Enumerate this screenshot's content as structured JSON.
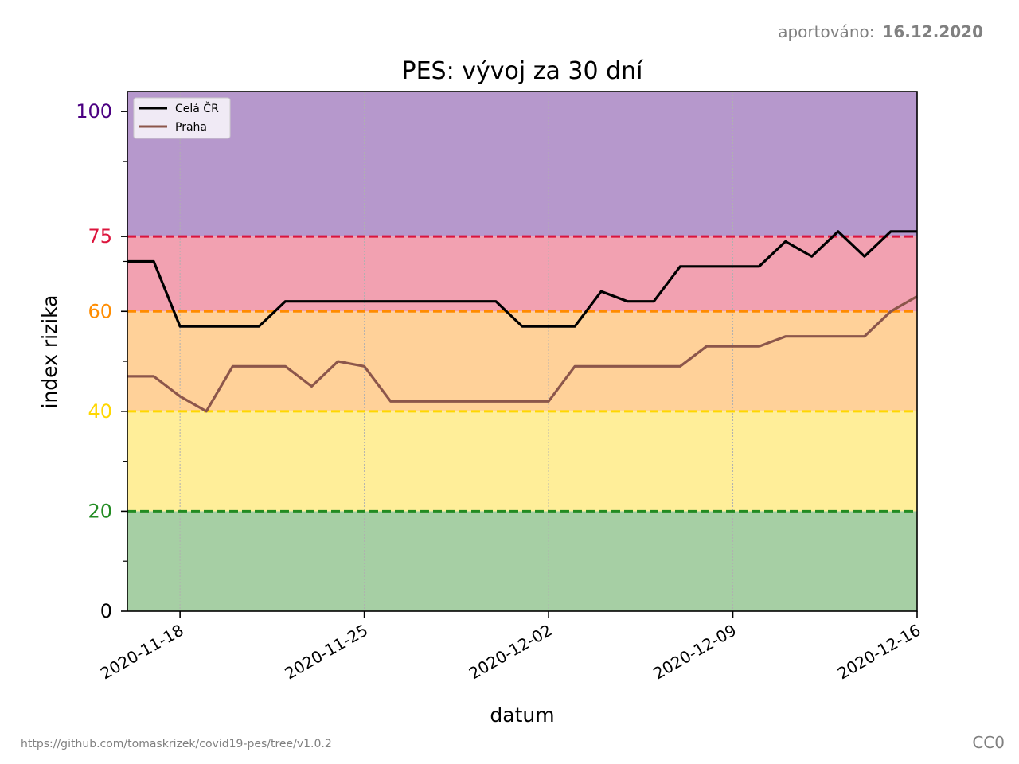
{
  "header": {
    "report_label": "aportováno:",
    "report_date": "16.12.2020"
  },
  "footer": {
    "source_url": "https://github.com/tomaskrizek/covid19-pes/tree/v1.0.2",
    "license": "CC0"
  },
  "chart_data": {
    "type": "line",
    "title": "PES: vývoj za 30 dní",
    "xlabel": "datum",
    "ylabel": "index rizika",
    "ylim": [
      0,
      104
    ],
    "xlim": [
      "2020-11-16",
      "2020-12-16"
    ],
    "x_ticks": [
      "2020-11-18",
      "2020-11-25",
      "2020-12-02",
      "2020-12-09",
      "2020-12-16"
    ],
    "y_ticks": [
      {
        "value": 0,
        "label": "0",
        "color": "#000000"
      },
      {
        "value": 20,
        "label": "20",
        "color": "#228b22"
      },
      {
        "value": 40,
        "label": "40",
        "color": "#ffd700"
      },
      {
        "value": 60,
        "label": "60",
        "color": "#ff8c00"
      },
      {
        "value": 75,
        "label": "75",
        "color": "#dc143c"
      },
      {
        "value": 100,
        "label": "100",
        "color": "#4b0082"
      }
    ],
    "y_minor_ticks": [
      10,
      30,
      50,
      70,
      90
    ],
    "bands": [
      {
        "from": 0,
        "to": 20,
        "color": "#a6cfa4"
      },
      {
        "from": 20,
        "to": 40,
        "color": "#ffee99"
      },
      {
        "from": 40,
        "to": 60,
        "color": "#ffd199"
      },
      {
        "from": 60,
        "to": 75,
        "color": "#f2a1b1"
      },
      {
        "from": 75,
        "to": 104,
        "color": "#b698cc"
      }
    ],
    "thresholds": [
      {
        "value": 20,
        "color": "#228b22"
      },
      {
        "value": 40,
        "color": "#ffd700"
      },
      {
        "value": 60,
        "color": "#ff8c00"
      },
      {
        "value": 75,
        "color": "#dc143c"
      }
    ],
    "grid_x": true,
    "legend_position": "top-left",
    "x": [
      "2020-11-16",
      "2020-11-17",
      "2020-11-18",
      "2020-11-19",
      "2020-11-20",
      "2020-11-21",
      "2020-11-22",
      "2020-11-23",
      "2020-11-24",
      "2020-11-25",
      "2020-11-26",
      "2020-11-27",
      "2020-11-28",
      "2020-11-29",
      "2020-11-30",
      "2020-12-01",
      "2020-12-02",
      "2020-12-03",
      "2020-12-04",
      "2020-12-05",
      "2020-12-06",
      "2020-12-07",
      "2020-12-08",
      "2020-12-09",
      "2020-12-10",
      "2020-12-11",
      "2020-12-12",
      "2020-12-13",
      "2020-12-14",
      "2020-12-15",
      "2020-12-16"
    ],
    "series": [
      {
        "name": "Celá ČR",
        "color": "#000000",
        "values": [
          70,
          70,
          57,
          57,
          57,
          57,
          62,
          62,
          62,
          62,
          62,
          62,
          62,
          62,
          62,
          57,
          57,
          57,
          64,
          62,
          62,
          69,
          69,
          69,
          69,
          74,
          71,
          76,
          71,
          76,
          76
        ]
      },
      {
        "name": "Praha",
        "color": "#8c564b",
        "values": [
          47,
          47,
          43,
          40,
          49,
          49,
          49,
          45,
          50,
          49,
          42,
          42,
          42,
          42,
          42,
          42,
          42,
          49,
          49,
          49,
          49,
          49,
          53,
          53,
          53,
          55,
          55,
          55,
          55,
          60,
          63
        ]
      }
    ]
  }
}
